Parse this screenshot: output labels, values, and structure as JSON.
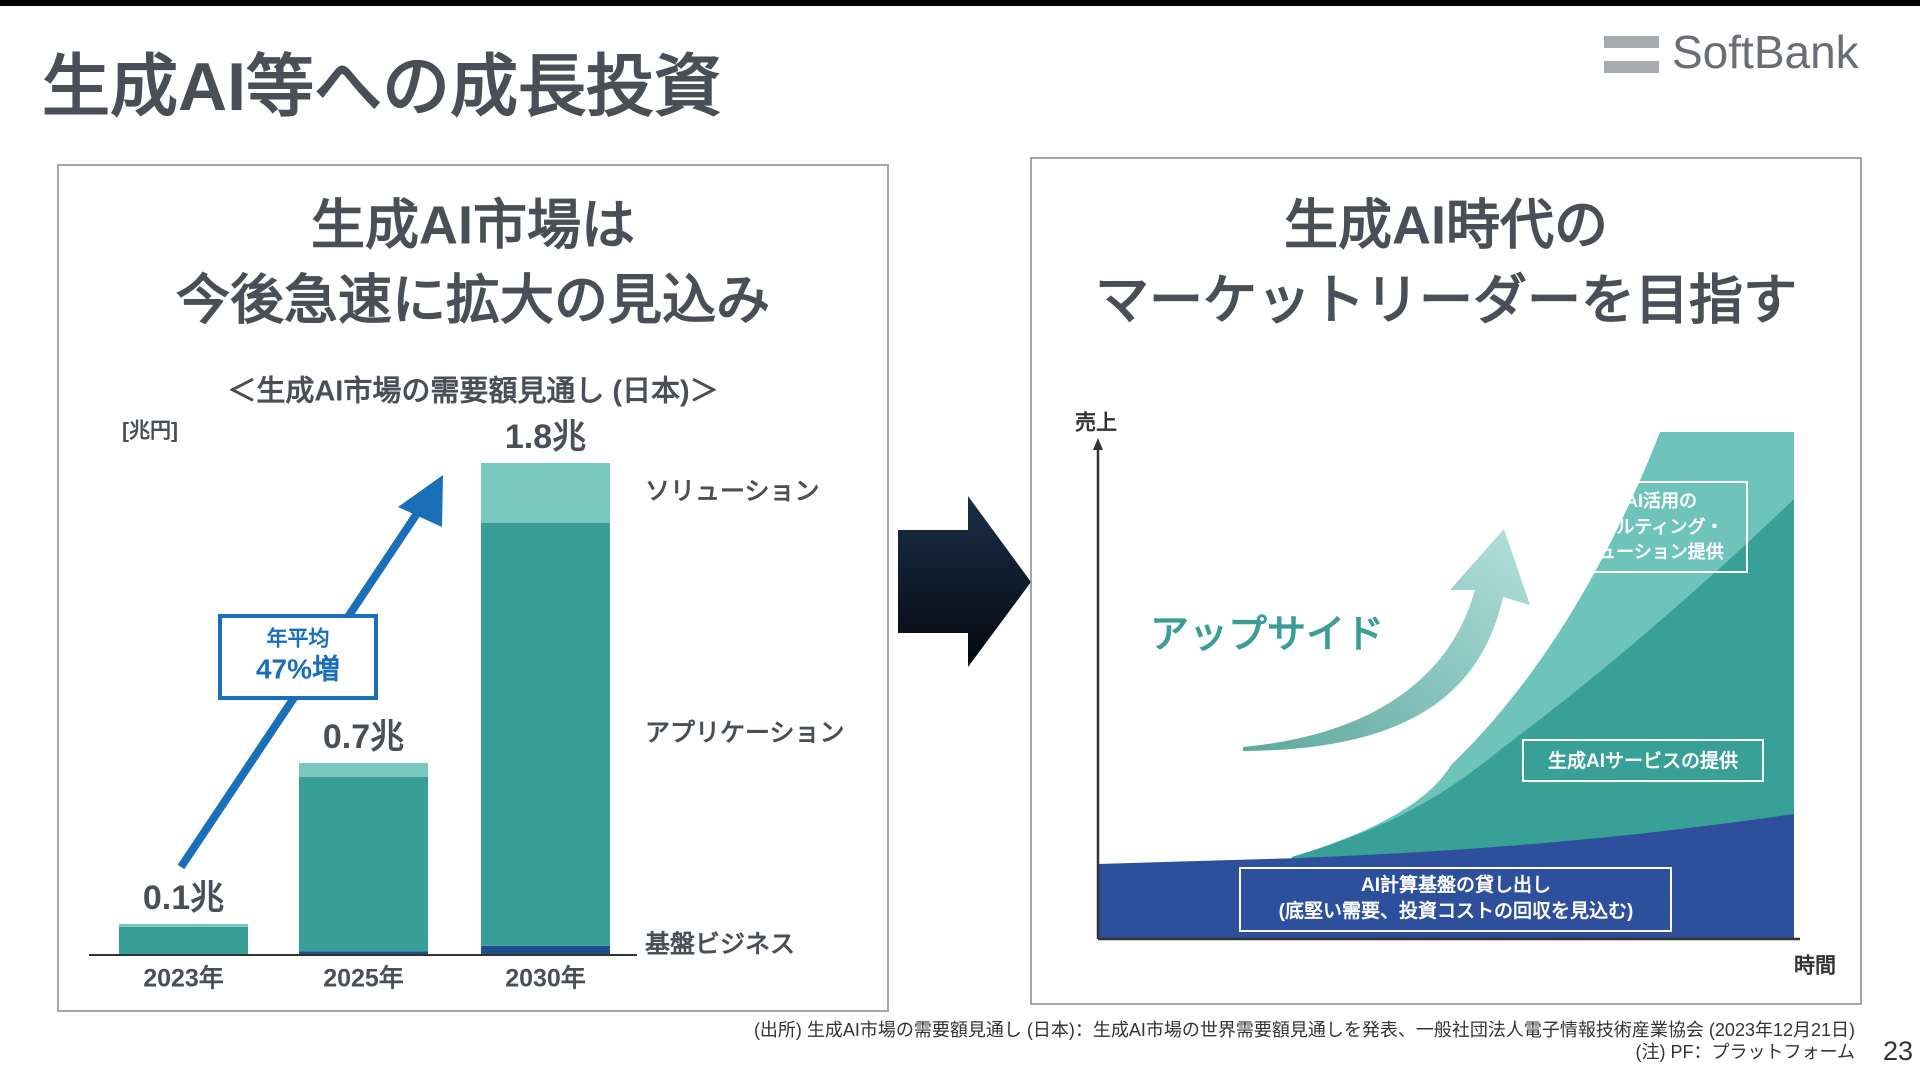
{
  "header": {
    "title": "生成AI等への成長投資",
    "logo": "SoftBank"
  },
  "left_panel": {
    "heading": [
      "生成AI市場は",
      "今後急速に拡大の見込み"
    ]
  },
  "chart_data": {
    "type": "bar",
    "stacked": true,
    "title": "＜生成AI市場の需要額見通し (日本)＞",
    "unit_label": "[兆円]",
    "categories": [
      "2023年",
      "2025年",
      "2030年"
    ],
    "series": [
      {
        "name": "基盤ビジネス",
        "color": "#1d4f8a",
        "values": [
          0,
          0.01,
          0.03
        ]
      },
      {
        "name": "アプリケーション",
        "color": "#399e96",
        "values": [
          0.1,
          0.64,
          1.55
        ]
      },
      {
        "name": "ソリューション",
        "color": "#78c8c0",
        "values": [
          0.01,
          0.05,
          0.22
        ]
      }
    ],
    "totals": [
      0.1,
      0.7,
      1.8
    ],
    "total_labels": [
      "0.1兆",
      "0.7兆",
      "1.8兆"
    ],
    "annotation": [
      "年平均",
      "47%増"
    ]
  },
  "right_panel": {
    "heading": [
      "生成AI時代の",
      "マーケットリーダーを目指す"
    ],
    "y_axis_label": "売上",
    "x_axis_label": "時間",
    "arrow_label": "アップサイド",
    "layers": [
      {
        "label": [
          "生成AI活用の",
          "コンサルティング・",
          "ソリューション提供"
        ]
      },
      {
        "label": [
          "生成AIサービスの提供"
        ]
      },
      {
        "label": [
          "AI計算基盤の貸し出し",
          "(底堅い需要、投資コストの回収を見込む)"
        ]
      }
    ]
  },
  "footnotes": {
    "source": "(出所) 生成AI市場の需要額見通し (日本)：生成AI市場の世界需要額見通しを発表、一般社団法人電子情報技術産業協会 (2023年12月21日)",
    "note": "(注) PF：プラットフォーム",
    "page_number": "23"
  }
}
